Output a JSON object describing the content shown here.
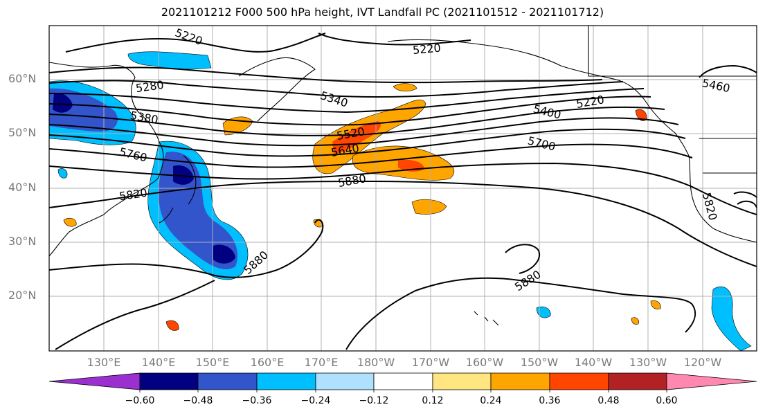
{
  "title": "2021101212 F000 500 hPa height, IVT Landfall PC (2021101512 - 2021101712)",
  "map": {
    "lat_labels": [
      "60°N",
      "50°N",
      "40°N",
      "30°N",
      "20°N"
    ],
    "lon_labels": [
      "130°E",
      "140°E",
      "150°E",
      "160°E",
      "170°E",
      "180°W",
      "170°W",
      "160°W",
      "150°W",
      "140°W",
      "130°W",
      "120°W"
    ],
    "contour_labels": [
      "5220",
      "5220",
      "5280",
      "5380",
      "5340",
      "5520",
      "5640",
      "5400",
      "5220",
      "5460",
      "5760",
      "5700",
      "5820",
      "5880",
      "5880",
      "5880",
      "5820"
    ]
  },
  "colorbar": {
    "ticks": [
      "−0.60",
      "−0.48",
      "−0.36",
      "−0.24",
      "−0.12",
      "0.12",
      "0.24",
      "0.36",
      "0.48",
      "0.60"
    ],
    "colors": [
      "#9b30d0",
      "#000080",
      "#3355cc",
      "#00bfff",
      "#afe1ff",
      "#ffffff",
      "#ffe680",
      "#ffa500",
      "#ff4500",
      "#b22222",
      "#ff88b0"
    ]
  }
}
